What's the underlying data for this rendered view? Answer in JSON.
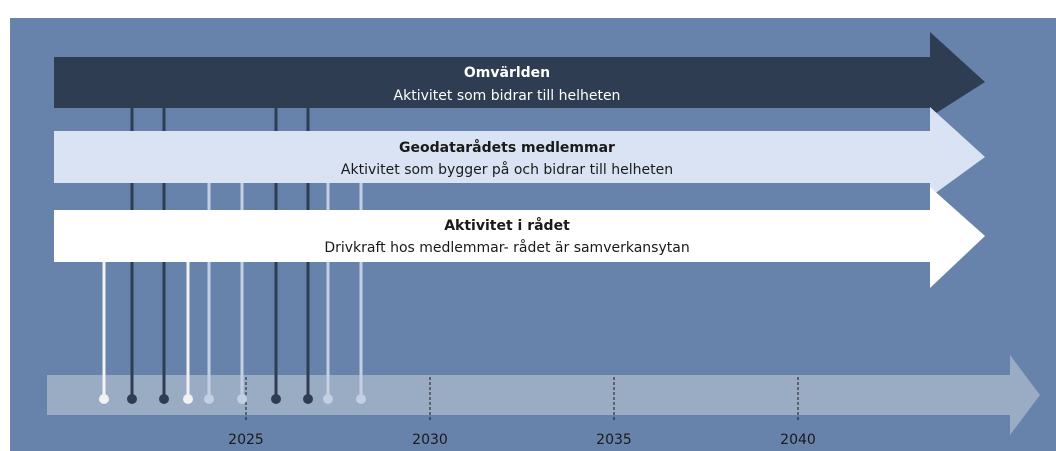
{
  "arrows": [
    {
      "title": "Omvärlden",
      "subtitle": "Aktivitet som bidrar till helheten"
    },
    {
      "title": "Geodatarådets medlemmar",
      "subtitle": "Aktivitet som bygger på och bidrar till helheten"
    },
    {
      "title": "Aktivitet i rådet",
      "subtitle": "Drivkraft hos medlemmar- rådet är samverkansytan"
    }
  ],
  "timeline": {
    "labels": [
      "2025",
      "2030",
      "2035",
      "2040"
    ]
  }
}
